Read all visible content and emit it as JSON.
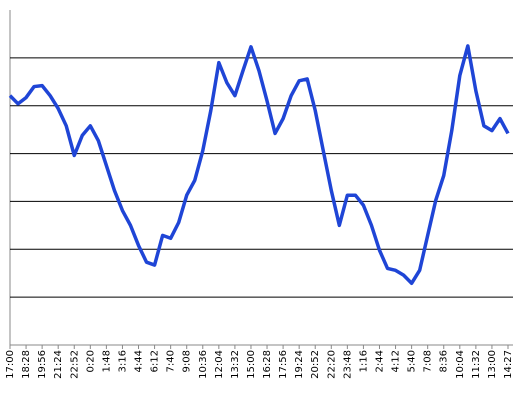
{
  "chart_data": {
    "type": "line",
    "categories": [
      "17:00",
      null,
      "18:28",
      null,
      "19:56",
      null,
      "21:24",
      null,
      "22:52",
      null,
      "0:20",
      null,
      "1:48",
      null,
      "3:16",
      null,
      "4:44",
      null,
      "6:12",
      null,
      "7:40",
      null,
      "9:08",
      null,
      "10:36",
      null,
      "12:04",
      null,
      "13:32",
      null,
      "15:00",
      null,
      "16:28",
      null,
      "17:56",
      null,
      "19:24",
      null,
      "20:52",
      null,
      "22:20",
      null,
      "23:48",
      null,
      "1:16",
      null,
      "2:44",
      null,
      "4:12",
      null,
      "5:40",
      null,
      "7:08",
      null,
      "8:36",
      null,
      "10:04",
      null,
      "11:32",
      null,
      "13:00",
      null,
      "14:27"
    ],
    "values": [
      5.21,
      5.04,
      5.17,
      5.4,
      5.42,
      5.21,
      4.94,
      4.58,
      3.96,
      4.38,
      4.58,
      4.27,
      3.75,
      3.23,
      2.81,
      2.5,
      2.08,
      1.73,
      1.67,
      2.29,
      2.23,
      2.56,
      3.13,
      3.44,
      4.06,
      4.9,
      5.9,
      5.48,
      5.21,
      5.73,
      6.23,
      5.73,
      5.1,
      4.42,
      4.73,
      5.21,
      5.52,
      5.56,
      4.9,
      4.06,
      3.23,
      2.5,
      3.13,
      3.13,
      2.92,
      2.5,
      1.98,
      1.6,
      1.56,
      1.46,
      1.29,
      1.56,
      2.29,
      3.02,
      3.54,
      4.48,
      5.63,
      6.25,
      5.31,
      4.58,
      4.48,
      4.73,
      4.42
    ],
    "color": "#1f45d6",
    "ylim": [
      0,
      7
    ],
    "yticks": [
      1,
      2,
      3,
      4,
      5,
      6
    ],
    "grid": true
  }
}
